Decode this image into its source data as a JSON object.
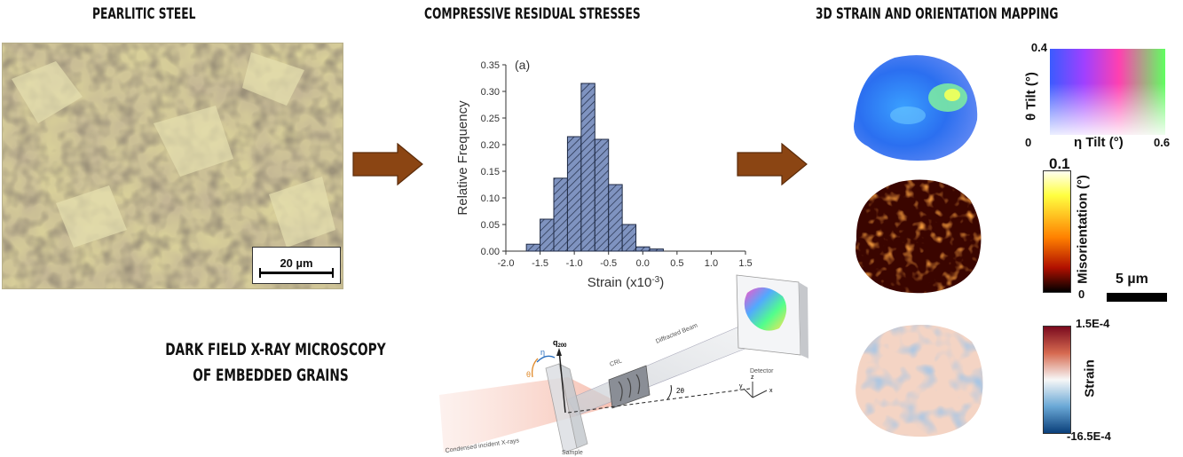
{
  "headings": {
    "left": "PEARLITIC STEEL",
    "middle": "COMPRESSIVE RESIDUAL STRESSES",
    "right": "3D STRAIN AND ORIENTATION MAPPING",
    "dfxm_line1": "DARK FIELD X-RAY MICROSCOPY",
    "dfxm_line2": "OF EMBEDDED GRAINS"
  },
  "micrograph": {
    "scale_label": "20 µm"
  },
  "arrows": {
    "color": "#8b4513"
  },
  "chart_data": {
    "type": "bar",
    "panel_label": "(a)",
    "xlabel": "Strain (x10",
    "xlabel_exp": "-3",
    "xlabel_close": ")",
    "ylabel": "Relative Frequency",
    "xlim": [
      -2.0,
      1.5
    ],
    "ylim": [
      0,
      0.35
    ],
    "xticks": [
      "-2.0",
      "-1.5",
      "-1.0",
      "-0.5",
      "0.0",
      "0.5",
      "1.0",
      "1.5"
    ],
    "yticks": [
      "0.00",
      "0.05",
      "0.10",
      "0.15",
      "0.20",
      "0.25",
      "0.30",
      "0.35"
    ],
    "bin_width": 0.2,
    "bins": [
      {
        "x0": -1.7,
        "value": 0.013
      },
      {
        "x0": -1.5,
        "value": 0.06
      },
      {
        "x0": -1.3,
        "value": 0.137
      },
      {
        "x0": -1.1,
        "value": 0.215
      },
      {
        "x0": -0.9,
        "value": 0.315
      },
      {
        "x0": -0.7,
        "value": 0.21
      },
      {
        "x0": -0.5,
        "value": 0.125
      },
      {
        "x0": -0.3,
        "value": 0.05
      },
      {
        "x0": -0.1,
        "value": 0.008
      },
      {
        "x0": 0.1,
        "value": 0.004
      }
    ],
    "bar_fill": "#7f93c0",
    "bar_stroke": "#1f2a44"
  },
  "schematic": {
    "q_label": "q",
    "q_sub": "200",
    "eta_label": "η",
    "theta_label": "θ",
    "crl_label": "CRL",
    "diffracted_label": "Diffracted Beam",
    "two_theta_label": "2θ",
    "detector_label": "Detector",
    "incident_label": "Condensed incident X-rays",
    "sample_label": "Sample",
    "axes": {
      "z": "z",
      "y": "y",
      "x": "x"
    }
  },
  "orientation_key": {
    "theta_max": "0.4",
    "origin": "0",
    "eta_max": "0.6",
    "theta_label": "θ Tilt (°)",
    "eta_label": "η Tilt (°)"
  },
  "misorientation_bar": {
    "max": "0.1",
    "min": "0",
    "label": "Misorientation (°)",
    "scale_label": "5 µm"
  },
  "strain_bar": {
    "max": "1.5E-4",
    "min": "-16.5E-4",
    "label": "Strain"
  }
}
